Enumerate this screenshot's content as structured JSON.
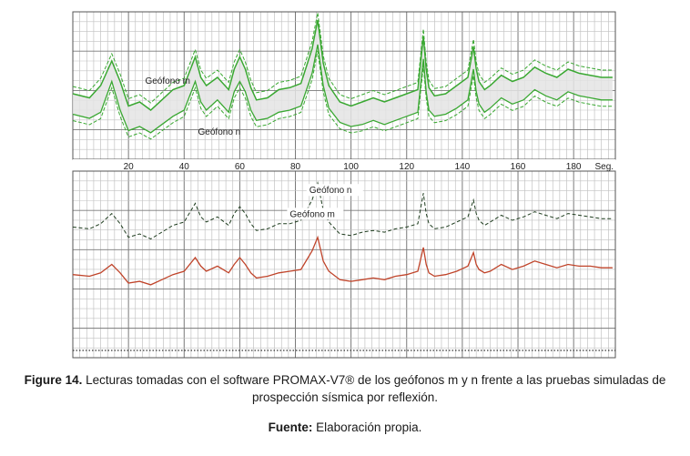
{
  "chart_data": [
    {
      "type": "line",
      "title": "",
      "xlabel": "Seg.",
      "ylabel": "",
      "xlim": [
        0,
        195
      ],
      "x_ticks": [
        20,
        40,
        60,
        80,
        100,
        120,
        140,
        160,
        180
      ],
      "x_tick_labels": [
        "20",
        "40",
        "60",
        "80",
        "100",
        "120",
        "140",
        "160",
        "180"
      ],
      "grid": true,
      "legend": "none",
      "series": [
        {
          "name": "Geófono m",
          "color": "#3aa832",
          "style": "solid-band",
          "x": [
            0,
            6,
            10,
            14,
            17,
            20,
            24,
            28,
            32,
            36,
            40,
            44,
            46,
            48,
            52,
            56,
            58,
            60,
            62,
            64,
            66,
            70,
            74,
            78,
            82,
            86,
            88,
            90,
            92,
            96,
            100,
            104,
            108,
            112,
            116,
            120,
            124,
            126,
            127,
            128,
            130,
            134,
            138,
            142,
            144,
            145,
            146,
            148,
            150,
            154,
            158,
            162,
            166,
            170,
            174,
            178,
            182,
            186,
            190,
            194
          ],
          "y": [
            0.0,
            -0.2,
            0.4,
            1.6,
            0.6,
            -0.6,
            -0.4,
            -0.8,
            -0.3,
            0.2,
            0.4,
            1.8,
            0.8,
            0.4,
            0.8,
            0.2,
            1.2,
            1.8,
            1.2,
            0.3,
            -0.3,
            -0.2,
            0.2,
            0.3,
            0.5,
            2.2,
            3.6,
            1.5,
            0.4,
            -0.4,
            -0.6,
            -0.4,
            -0.2,
            -0.4,
            -0.2,
            0.0,
            0.2,
            2.8,
            1.2,
            0.3,
            -0.1,
            0.0,
            0.4,
            0.8,
            2.3,
            1.2,
            0.6,
            0.2,
            0.4,
            0.9,
            0.6,
            0.8,
            1.3,
            1.0,
            0.8,
            1.2,
            1.0,
            0.9,
            0.8,
            0.8
          ]
        },
        {
          "name": "Geófono n",
          "color": "#3aa832",
          "style": "dashed-band",
          "x": [
            0,
            6,
            10,
            14,
            17,
            20,
            24,
            28,
            32,
            36,
            40,
            44,
            46,
            48,
            52,
            56,
            58,
            60,
            62,
            64,
            66,
            70,
            74,
            78,
            82,
            86,
            88,
            90,
            92,
            96,
            100,
            104,
            108,
            112,
            116,
            120,
            124,
            126,
            127,
            128,
            130,
            134,
            138,
            142,
            144,
            145,
            146,
            148,
            150,
            154,
            158,
            162,
            166,
            170,
            174,
            178,
            182,
            186,
            190,
            194
          ],
          "y": [
            -1.0,
            -1.2,
            -0.9,
            0.6,
            -0.8,
            -1.8,
            -1.6,
            -1.9,
            -1.5,
            -1.1,
            -0.8,
            0.6,
            -0.4,
            -0.8,
            -0.3,
            -0.9,
            0.1,
            0.6,
            0.1,
            -0.8,
            -1.3,
            -1.2,
            -0.9,
            -0.8,
            -0.6,
            1.0,
            2.4,
            0.4,
            -0.7,
            -1.4,
            -1.6,
            -1.5,
            -1.3,
            -1.5,
            -1.3,
            -1.1,
            -0.9,
            1.7,
            0.1,
            -0.8,
            -1.1,
            -1.0,
            -0.7,
            -0.3,
            1.2,
            0.1,
            -0.5,
            -0.9,
            -0.7,
            -0.2,
            -0.5,
            -0.3,
            0.2,
            -0.1,
            -0.3,
            0.1,
            -0.1,
            -0.2,
            -0.3,
            -0.3
          ]
        }
      ],
      "annotations": [
        {
          "text": "Geófono m",
          "x": 26,
          "y": 0.5
        },
        {
          "text": "Geófono n",
          "x": 45,
          "y": -2.0
        }
      ]
    },
    {
      "type": "line",
      "title": "",
      "xlabel": "",
      "ylabel": "",
      "xlim": [
        0,
        195
      ],
      "grid": true,
      "legend": "none",
      "series": [
        {
          "name": "Geófono m",
          "color": "#1f3d1f",
          "style": "dashed",
          "x": [
            0,
            6,
            10,
            14,
            17,
            20,
            24,
            28,
            32,
            36,
            40,
            44,
            46,
            48,
            52,
            56,
            58,
            60,
            62,
            64,
            66,
            70,
            74,
            78,
            82,
            86,
            88,
            90,
            92,
            96,
            100,
            104,
            108,
            112,
            116,
            120,
            124,
            126,
            127,
            128,
            130,
            134,
            138,
            142,
            144,
            145,
            146,
            148,
            150,
            154,
            158,
            162,
            166,
            170,
            174,
            178,
            182,
            186,
            190,
            194
          ],
          "y": [
            0.0,
            -0.1,
            0.2,
            0.8,
            0.2,
            -0.6,
            -0.4,
            -0.7,
            -0.3,
            0.1,
            0.3,
            1.4,
            0.6,
            0.3,
            0.6,
            0.1,
            0.8,
            1.2,
            0.8,
            0.2,
            -0.2,
            -0.1,
            0.2,
            0.2,
            0.4,
            1.6,
            2.6,
            1.0,
            0.3,
            -0.4,
            -0.5,
            -0.3,
            -0.2,
            -0.3,
            -0.1,
            0.0,
            0.2,
            2.0,
            0.8,
            0.2,
            -0.1,
            0.0,
            0.3,
            0.6,
            1.6,
            0.8,
            0.4,
            0.1,
            0.3,
            0.7,
            0.4,
            0.6,
            0.9,
            0.7,
            0.5,
            0.8,
            0.7,
            0.6,
            0.5,
            0.5
          ]
        },
        {
          "name": "Geófono n",
          "color": "#c0442a",
          "style": "solid",
          "x": [
            0,
            6,
            10,
            14,
            17,
            20,
            24,
            28,
            32,
            36,
            40,
            44,
            46,
            48,
            52,
            56,
            58,
            60,
            62,
            64,
            66,
            70,
            74,
            78,
            82,
            86,
            88,
            90,
            92,
            96,
            100,
            104,
            108,
            112,
            116,
            120,
            124,
            126,
            127,
            128,
            130,
            134,
            138,
            142,
            144,
            145,
            146,
            148,
            150,
            154,
            158,
            162,
            166,
            170,
            174,
            178,
            182,
            186,
            190,
            194
          ],
          "y": [
            0.0,
            -0.1,
            0.1,
            0.6,
            0.1,
            -0.5,
            -0.4,
            -0.6,
            -0.3,
            0.0,
            0.2,
            1.0,
            0.5,
            0.2,
            0.5,
            0.1,
            0.6,
            1.0,
            0.6,
            0.1,
            -0.2,
            -0.1,
            0.1,
            0.2,
            0.3,
            1.4,
            2.2,
            0.8,
            0.2,
            -0.3,
            -0.4,
            -0.3,
            -0.2,
            -0.3,
            -0.1,
            0.0,
            0.2,
            1.6,
            0.6,
            0.1,
            -0.1,
            0.0,
            0.2,
            0.5,
            1.3,
            0.6,
            0.3,
            0.1,
            0.2,
            0.6,
            0.3,
            0.5,
            0.8,
            0.6,
            0.4,
            0.6,
            0.5,
            0.5,
            0.4,
            0.4
          ]
        }
      ],
      "annotations": [
        {
          "text": "Geófono m",
          "x": 78,
          "y": 1.8
        },
        {
          "text": "Geófono n",
          "x": 85,
          "y": 3.2
        }
      ]
    }
  ],
  "caption": {
    "label": "Figure 14.",
    "text": " Lecturas tomadas con el software PROMAX-V7® de los geófonos m y n frente a las pruebas simuladas de prospección sísmica por reflexión.",
    "source_label": "Fuente:",
    "source_text": " Elaboración propia."
  }
}
